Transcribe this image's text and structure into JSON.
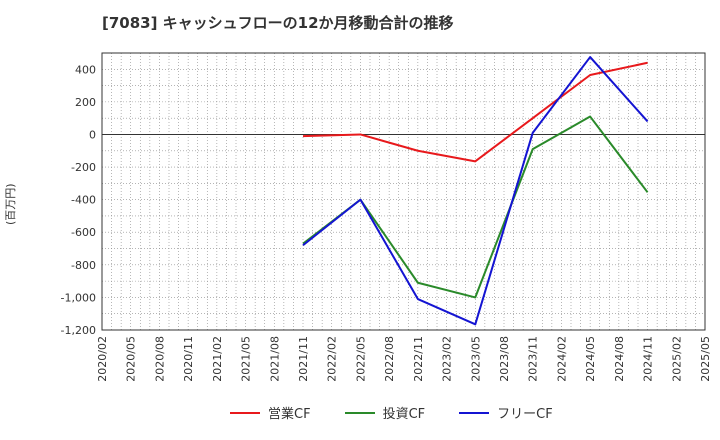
{
  "chart_data": {
    "type": "line",
    "title": "[7083]  キャッシュフローの12か月移動合計の推移",
    "ylabel": "(百万円)",
    "xlabel": "",
    "ylim": [
      -1200,
      500
    ],
    "yticks": [
      400,
      200,
      0,
      -200,
      -400,
      -600,
      -800,
      -1000,
      -1200
    ],
    "ytick_labels": [
      "400",
      "200",
      "0",
      "-200",
      "-400",
      "-600",
      "-800",
      "-1,000",
      "-1,200"
    ],
    "x_categories": [
      "2020/02",
      "2020/05",
      "2020/08",
      "2020/11",
      "2021/02",
      "2021/05",
      "2021/08",
      "2021/11",
      "2022/02",
      "2022/05",
      "2022/08",
      "2022/11",
      "2023/02",
      "2023/05",
      "2023/08",
      "2023/11",
      "2024/02",
      "2024/05",
      "2024/08",
      "2024/11",
      "2025/02",
      "2025/05"
    ],
    "grid": true,
    "legend_position": "bottom",
    "series": [
      {
        "name": "営業CF",
        "color": "#e8191c",
        "x": [
          "2021/11",
          "2022/05",
          "2022/11",
          "2023/05",
          "2023/11",
          "2024/05",
          "2024/11"
        ],
        "values": [
          -10,
          0,
          -100,
          -165,
          100,
          365,
          440
        ]
      },
      {
        "name": "投資CF",
        "color": "#2a8a2a",
        "x": [
          "2021/11",
          "2022/05",
          "2022/11",
          "2023/05",
          "2023/11",
          "2024/05",
          "2024/11"
        ],
        "values": [
          -670,
          -400,
          -910,
          -1000,
          -90,
          110,
          -355
        ]
      },
      {
        "name": "フリーCF",
        "color": "#1414d2",
        "x": [
          "2021/11",
          "2022/05",
          "2022/11",
          "2023/05",
          "2023/11",
          "2024/05",
          "2024/11"
        ],
        "values": [
          -680,
          -400,
          -1010,
          -1165,
          10,
          475,
          80
        ]
      }
    ]
  }
}
